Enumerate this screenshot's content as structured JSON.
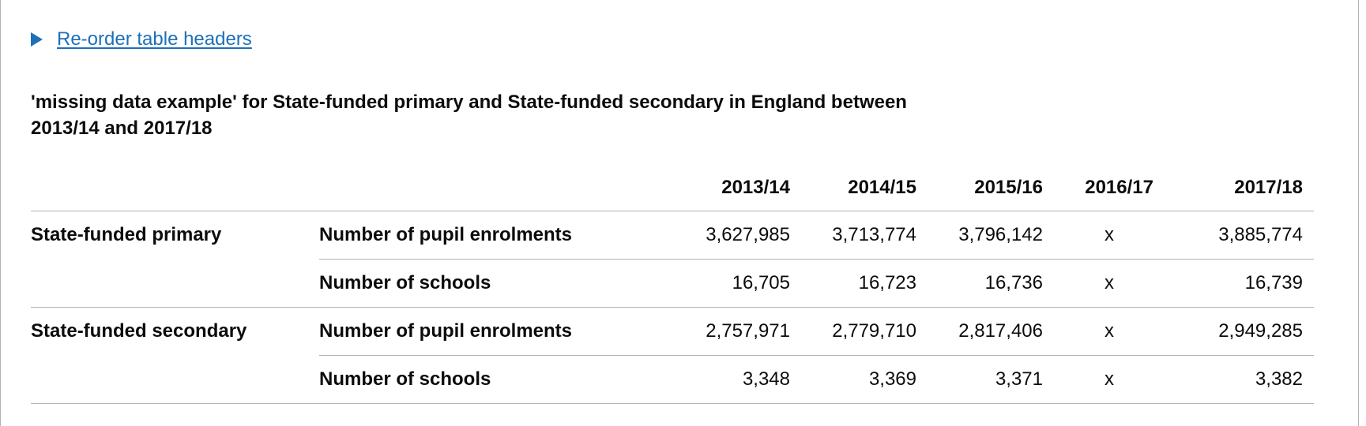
{
  "details": {
    "summary_label": "Re-order table headers"
  },
  "table": {
    "caption": "'missing data example' for State-funded primary and State-funded secondary in England between 2013/14 and 2017/18",
    "columns": [
      "2013/14",
      "2014/15",
      "2015/16",
      "2016/17",
      "2017/18"
    ],
    "groups": [
      {
        "label": "State-funded primary",
        "rows": [
          {
            "label": "Number of pupil enrolments",
            "values": [
              "3,627,985",
              "3,713,774",
              "3,796,142",
              "x",
              "3,885,774"
            ]
          },
          {
            "label": "Number of schools",
            "values": [
              "16,705",
              "16,723",
              "16,736",
              "x",
              "16,739"
            ]
          }
        ]
      },
      {
        "label": "State-funded secondary",
        "rows": [
          {
            "label": "Number of pupil enrolments",
            "values": [
              "2,757,971",
              "2,779,710",
              "2,817,406",
              "x",
              "2,949,285"
            ]
          },
          {
            "label": "Number of schools",
            "values": [
              "3,348",
              "3,369",
              "3,371",
              "x",
              "3,382"
            ]
          }
        ]
      }
    ]
  },
  "colors": {
    "link": "#1d70b8",
    "text": "#0b0c0c",
    "border": "#b1b4b6"
  }
}
